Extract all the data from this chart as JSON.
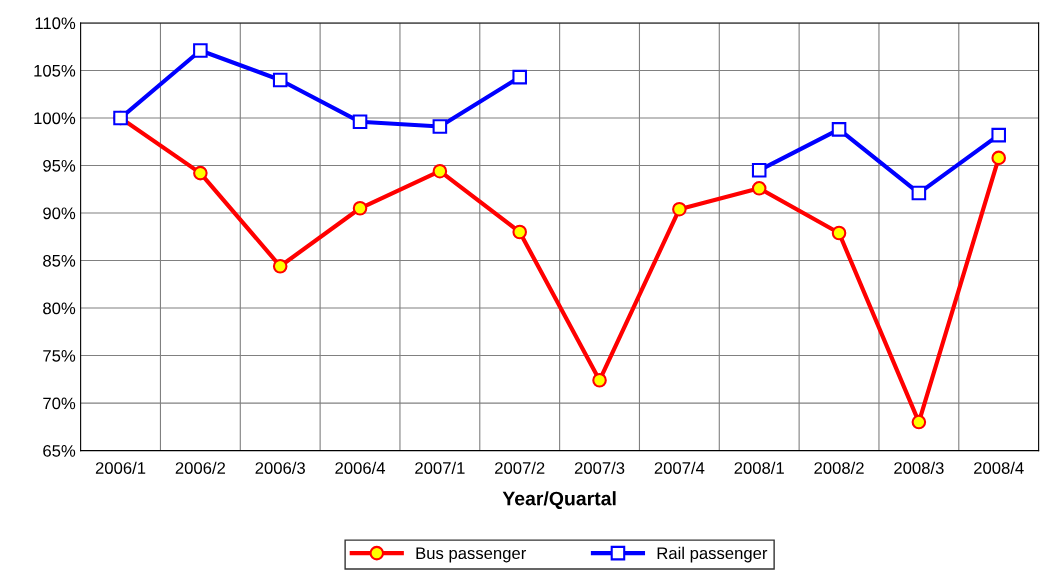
{
  "chart_data": {
    "type": "line",
    "xlabel": "Year/Quartal",
    "categories": [
      "2006/1",
      "2006/2",
      "2006/3",
      "2006/4",
      "2007/1",
      "2007/2",
      "2007/3",
      "2007/4",
      "2008/1",
      "2008/2",
      "2008/3",
      "2008/4"
    ],
    "series": [
      {
        "name": "Bus passenger",
        "color": "#ff0000",
        "marker": "circle",
        "values": [
          100,
          94.2,
          84.4,
          90.5,
          94.4,
          88.0,
          72.4,
          90.4,
          92.6,
          87.9,
          68.0,
          95.8
        ]
      },
      {
        "name": "Rail passenger",
        "color": "#0000ff",
        "marker": "square",
        "values": [
          100,
          107.1,
          104.0,
          99.6,
          99.1,
          104.3,
          null,
          null,
          94.5,
          98.8,
          92.1,
          98.2
        ]
      }
    ],
    "ylim": [
      65,
      110
    ],
    "yticks": [
      {
        "value": 65,
        "label": "65%"
      },
      {
        "value": 70,
        "label": "70%"
      },
      {
        "value": 75,
        "label": "75%"
      },
      {
        "value": 80,
        "label": "80%"
      },
      {
        "value": 85,
        "label": "85%"
      },
      {
        "value": 90,
        "label": "90%"
      },
      {
        "value": 95,
        "label": "95%"
      },
      {
        "value": 100,
        "label": "100%"
      },
      {
        "value": 105,
        "label": "105%"
      },
      {
        "value": 110,
        "label": "110%"
      }
    ],
    "grid": true,
    "legend": "bottom",
    "line_style": "solid"
  }
}
